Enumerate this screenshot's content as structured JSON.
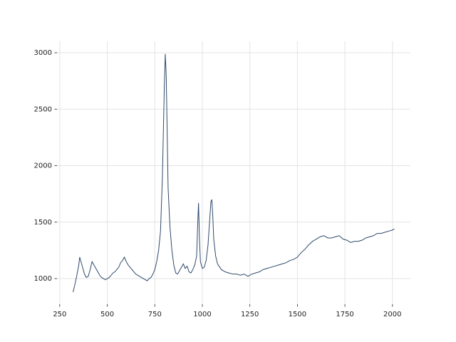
{
  "chart_data": {
    "type": "line",
    "x": [
      320,
      330,
      340,
      350,
      355,
      360,
      370,
      380,
      390,
      400,
      410,
      420,
      430,
      440,
      450,
      460,
      470,
      480,
      490,
      500,
      510,
      520,
      530,
      540,
      550,
      560,
      570,
      580,
      590,
      600,
      610,
      620,
      630,
      640,
      650,
      660,
      670,
      680,
      690,
      700,
      710,
      720,
      730,
      740,
      750,
      760,
      770,
      780,
      790,
      800,
      805,
      810,
      815,
      820,
      830,
      840,
      850,
      860,
      870,
      880,
      890,
      900,
      910,
      920,
      930,
      940,
      950,
      960,
      970,
      975,
      980,
      985,
      990,
      1000,
      1010,
      1020,
      1030,
      1040,
      1045,
      1050,
      1055,
      1060,
      1070,
      1080,
      1100,
      1120,
      1140,
      1160,
      1180,
      1200,
      1220,
      1240,
      1260,
      1280,
      1300,
      1320,
      1340,
      1360,
      1380,
      1400,
      1420,
      1440,
      1460,
      1480,
      1500,
      1520,
      1540,
      1560,
      1580,
      1600,
      1620,
      1640,
      1660,
      1680,
      1700,
      1720,
      1740,
      1760,
      1780,
      1800,
      1820,
      1840,
      1860,
      1880,
      1900,
      1920,
      1940,
      1960,
      1980,
      2000,
      2010
    ],
    "values": [
      880,
      950,
      1030,
      1120,
      1190,
      1160,
      1100,
      1040,
      1010,
      1020,
      1080,
      1150,
      1120,
      1090,
      1060,
      1030,
      1010,
      1000,
      990,
      1000,
      1010,
      1030,
      1050,
      1060,
      1080,
      1100,
      1140,
      1160,
      1190,
      1150,
      1120,
      1100,
      1080,
      1060,
      1040,
      1030,
      1020,
      1010,
      1000,
      990,
      980,
      1000,
      1010,
      1040,
      1080,
      1150,
      1250,
      1420,
      1900,
      2700,
      2990,
      2800,
      2300,
      1800,
      1450,
      1250,
      1120,
      1050,
      1040,
      1070,
      1100,
      1130,
      1090,
      1110,
      1060,
      1050,
      1080,
      1120,
      1200,
      1450,
      1670,
      1350,
      1150,
      1090,
      1100,
      1160,
      1300,
      1550,
      1680,
      1700,
      1550,
      1350,
      1200,
      1130,
      1080,
      1060,
      1050,
      1040,
      1040,
      1030,
      1040,
      1020,
      1040,
      1050,
      1060,
      1080,
      1090,
      1100,
      1110,
      1120,
      1130,
      1140,
      1160,
      1170,
      1190,
      1230,
      1260,
      1300,
      1330,
      1350,
      1370,
      1380,
      1360,
      1360,
      1370,
      1380,
      1350,
      1340,
      1320,
      1330,
      1330,
      1340,
      1360,
      1370,
      1380,
      1400,
      1400,
      1410,
      1420,
      1430,
      1440
    ],
    "color": "#2e4a6b",
    "xlim": [
      235.5,
      2094.5
    ],
    "xticks": [
      250,
      500,
      750,
      1000,
      1250,
      1500,
      1750,
      2000
    ],
    "ylim": [
      773,
      3101
    ],
    "yticks": [
      1000,
      1500,
      2000,
      2500,
      3000
    ],
    "grid": true
  }
}
